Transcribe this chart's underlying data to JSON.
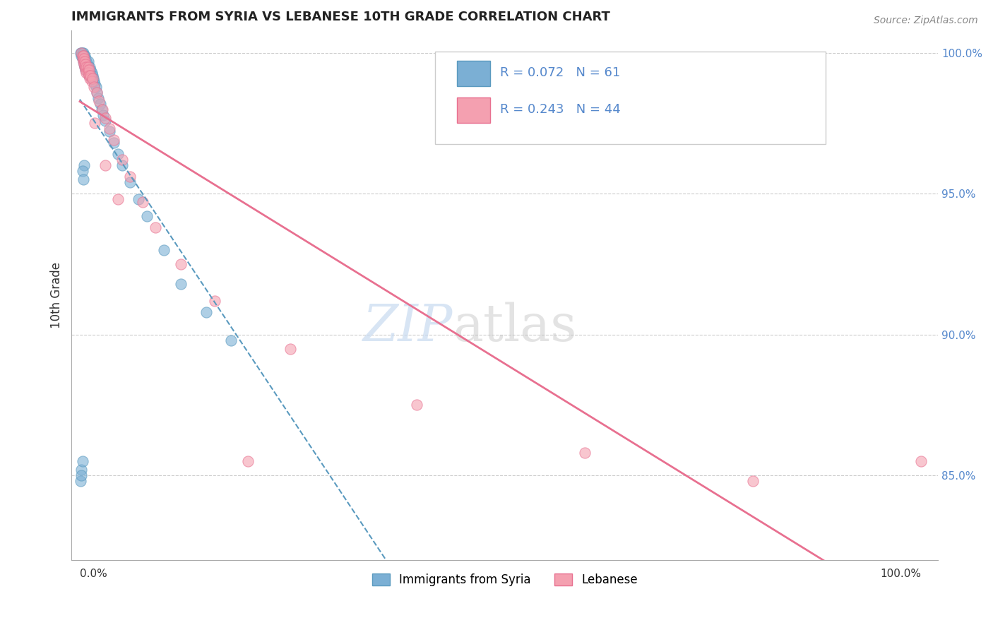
{
  "title": "IMMIGRANTS FROM SYRIA VS LEBANESE 10TH GRADE CORRELATION CHART",
  "source": "Source: ZipAtlas.com",
  "ylabel": "10th Grade",
  "legend_syria": "Immigrants from Syria",
  "legend_lebanese": "Lebanese",
  "R_syria": 0.072,
  "N_syria": 61,
  "R_lebanese": 0.243,
  "N_lebanese": 44,
  "ytick_vals": [
    0.85,
    0.9,
    0.95,
    1.0
  ],
  "ytick_labels": [
    "85.0%",
    "90.0%",
    "95.0%",
    "100.0%"
  ],
  "color_syria": "#7bafd4",
  "color_lebanese": "#f4a0b0",
  "trendline_syria_color": "#5a9abf",
  "trendline_lebanese_color": "#e87090",
  "x_syria": [
    0.001,
    0.002,
    0.002,
    0.003,
    0.003,
    0.004,
    0.004,
    0.004,
    0.005,
    0.005,
    0.005,
    0.006,
    0.006,
    0.006,
    0.007,
    0.007,
    0.007,
    0.008,
    0.008,
    0.009,
    0.009,
    0.01,
    0.01,
    0.01,
    0.011,
    0.011,
    0.012,
    0.012,
    0.013,
    0.013,
    0.014,
    0.014,
    0.015,
    0.016,
    0.017,
    0.018,
    0.019,
    0.02,
    0.022,
    0.024,
    0.026,
    0.028,
    0.03,
    0.035,
    0.04,
    0.045,
    0.05,
    0.06,
    0.07,
    0.08,
    0.1,
    0.12,
    0.15,
    0.18,
    0.005,
    0.003,
    0.004,
    0.002,
    0.001,
    0.003,
    0.002
  ],
  "y_syria": [
    1.0,
    1.0,
    0.999,
    1.0,
    0.998,
    1.0,
    0.999,
    0.997,
    0.999,
    0.998,
    0.996,
    0.999,
    0.997,
    0.995,
    0.998,
    0.996,
    0.994,
    0.997,
    0.995,
    0.996,
    0.994,
    0.997,
    0.995,
    0.993,
    0.994,
    0.992,
    0.995,
    0.993,
    0.994,
    0.992,
    0.993,
    0.991,
    0.992,
    0.991,
    0.99,
    0.989,
    0.988,
    0.986,
    0.984,
    0.982,
    0.98,
    0.978,
    0.976,
    0.972,
    0.968,
    0.964,
    0.96,
    0.954,
    0.948,
    0.942,
    0.93,
    0.918,
    0.908,
    0.898,
    0.96,
    0.958,
    0.955,
    0.852,
    0.848,
    0.855,
    0.85
  ],
  "x_leb": [
    0.002,
    0.003,
    0.003,
    0.004,
    0.004,
    0.005,
    0.005,
    0.006,
    0.006,
    0.007,
    0.007,
    0.008,
    0.008,
    0.009,
    0.01,
    0.01,
    0.011,
    0.011,
    0.012,
    0.013,
    0.014,
    0.015,
    0.017,
    0.02,
    0.023,
    0.027,
    0.03,
    0.035,
    0.04,
    0.05,
    0.06,
    0.075,
    0.09,
    0.12,
    0.16,
    0.25,
    0.4,
    0.6,
    0.8,
    1.0,
    0.018,
    0.03,
    0.045,
    0.2
  ],
  "y_leb": [
    1.0,
    0.999,
    0.998,
    0.999,
    0.997,
    0.998,
    0.996,
    0.997,
    0.995,
    0.996,
    0.994,
    0.995,
    0.993,
    0.994,
    0.995,
    0.993,
    0.994,
    0.992,
    0.991,
    0.992,
    0.99,
    0.991,
    0.988,
    0.986,
    0.983,
    0.98,
    0.977,
    0.973,
    0.969,
    0.962,
    0.956,
    0.947,
    0.938,
    0.925,
    0.912,
    0.895,
    0.875,
    0.858,
    0.848,
    0.855,
    0.975,
    0.96,
    0.948,
    0.855
  ],
  "xlim": [
    -0.01,
    1.02
  ],
  "ylim": [
    0.82,
    1.008
  ],
  "watermark_zip_color": "#c8daf0",
  "watermark_atlas_color": "#c8c8c8",
  "grid_color": "#cccccc",
  "right_tick_color": "#5588cc",
  "legend_text_color": "#5588cc",
  "spine_color": "#aaaaaa"
}
